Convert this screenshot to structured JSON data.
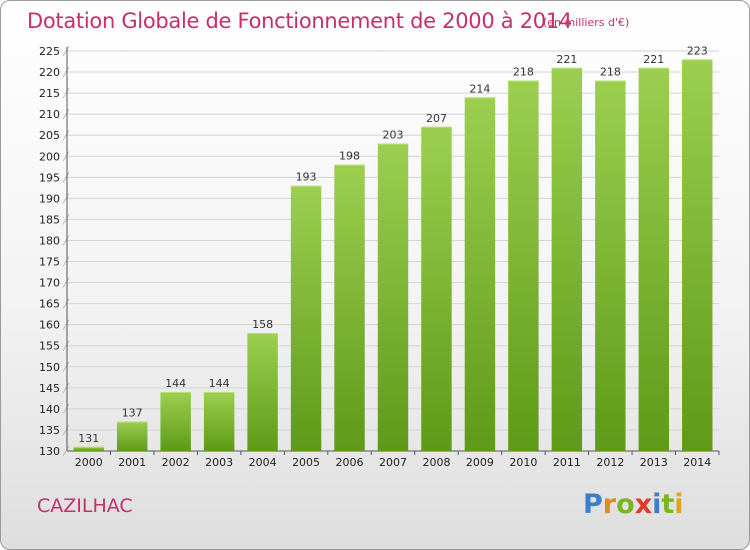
{
  "header": {
    "title": "Dotation Globale de Fonctionnement de 2000 à 2014",
    "subtitle": "(en milliers d'€)"
  },
  "footer": {
    "commune": "CAZILHAC",
    "logo_text": "Proxiti"
  },
  "colors": {
    "title": "#c4306a",
    "bar_top": "#9ccf4f",
    "bar_bottom": "#5e9a17",
    "logo_letters": [
      "#3a7fc8",
      "#e08a1c",
      "#7ab51d",
      "#e03a2a",
      "#3a7fc8",
      "#7ab51d",
      "#e0a51c"
    ]
  },
  "chart_data": {
    "type": "bar",
    "title": "Dotation Globale de Fonctionnement de 2000 à 2014",
    "subtitle": "(en milliers d'€)",
    "xlabel": "",
    "ylabel": "",
    "categories": [
      "2000",
      "2001",
      "2002",
      "2003",
      "2004",
      "2005",
      "2006",
      "2007",
      "2008",
      "2009",
      "2010",
      "2011",
      "2012",
      "2013",
      "2014"
    ],
    "values": [
      131,
      137,
      144,
      144,
      158,
      193,
      198,
      203,
      207,
      214,
      218,
      221,
      218,
      221,
      223
    ],
    "ylim": [
      130,
      225
    ],
    "yticks": [
      130,
      135,
      140,
      145,
      150,
      155,
      160,
      165,
      170,
      175,
      180,
      185,
      190,
      195,
      200,
      205,
      210,
      215,
      220,
      225
    ],
    "grid": true,
    "legend": "none"
  }
}
